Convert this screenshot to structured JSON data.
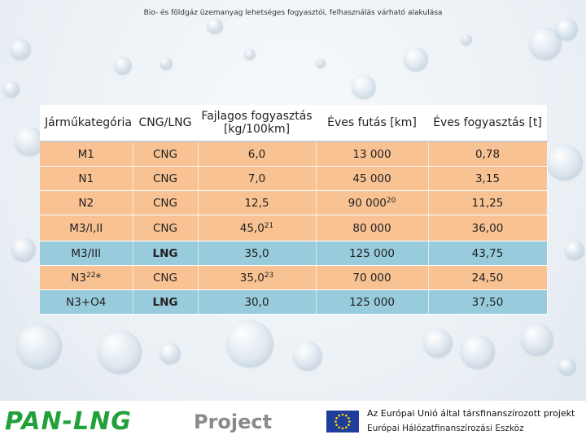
{
  "title": "Bio- és földgáz üzemanyag lehetséges fogyasztói, felhasználás várható alakulása",
  "table": {
    "headers": [
      "Járműkategória",
      "CNG/LNG",
      "Fajlagos fogyasztás [kg/100km]",
      "Éves futás [km]",
      "Éves fogyasztás [t]"
    ],
    "header_line1": "Fajlagos fogyasztás",
    "header_line2": "[kg/100km]",
    "rows": [
      {
        "category": "M1",
        "fuel": "CNG",
        "consumption": "6,0",
        "mileage": "13 000",
        "annual": "0,78"
      },
      {
        "category": "N1",
        "fuel": "CNG",
        "consumption": "7,0",
        "mileage": "45 000",
        "annual": "3,15"
      },
      {
        "category": "N2",
        "fuel": "CNG",
        "consumption": "12,5",
        "mileage": "90 000",
        "mileage_sup": "20",
        "annual": "11,25"
      },
      {
        "category": "M3/I,II",
        "fuel": "CNG",
        "consumption": "45,0",
        "consumption_sup": "21",
        "mileage": "80 000",
        "annual": "36,00"
      },
      {
        "category": "M3/III",
        "fuel": "LNG",
        "consumption": "35,0",
        "mileage": "125 000",
        "annual": "43,75"
      },
      {
        "category": "N3",
        "category_sup": "22",
        "category_suffix": "*",
        "fuel": "CNG",
        "consumption": "35,0",
        "consumption_sup": "23",
        "mileage": "70 000",
        "annual": "24,50"
      },
      {
        "category": "N3+O4",
        "fuel": "LNG",
        "consumption": "30,0",
        "mileage": "125 000",
        "annual": "37,50"
      }
    ]
  },
  "footer": {
    "logo": "PAN-LNG",
    "logo_suffix": "Project",
    "eu_line1": "Az Európai Unió által társfinanszírozott projekt",
    "eu_line2": "Európai Hálózatfinanszírozási Eszköz"
  },
  "colors": {
    "orange_row": "#f8c293",
    "blue_row": "#98cbdb",
    "logo_green": "#22a13a"
  }
}
